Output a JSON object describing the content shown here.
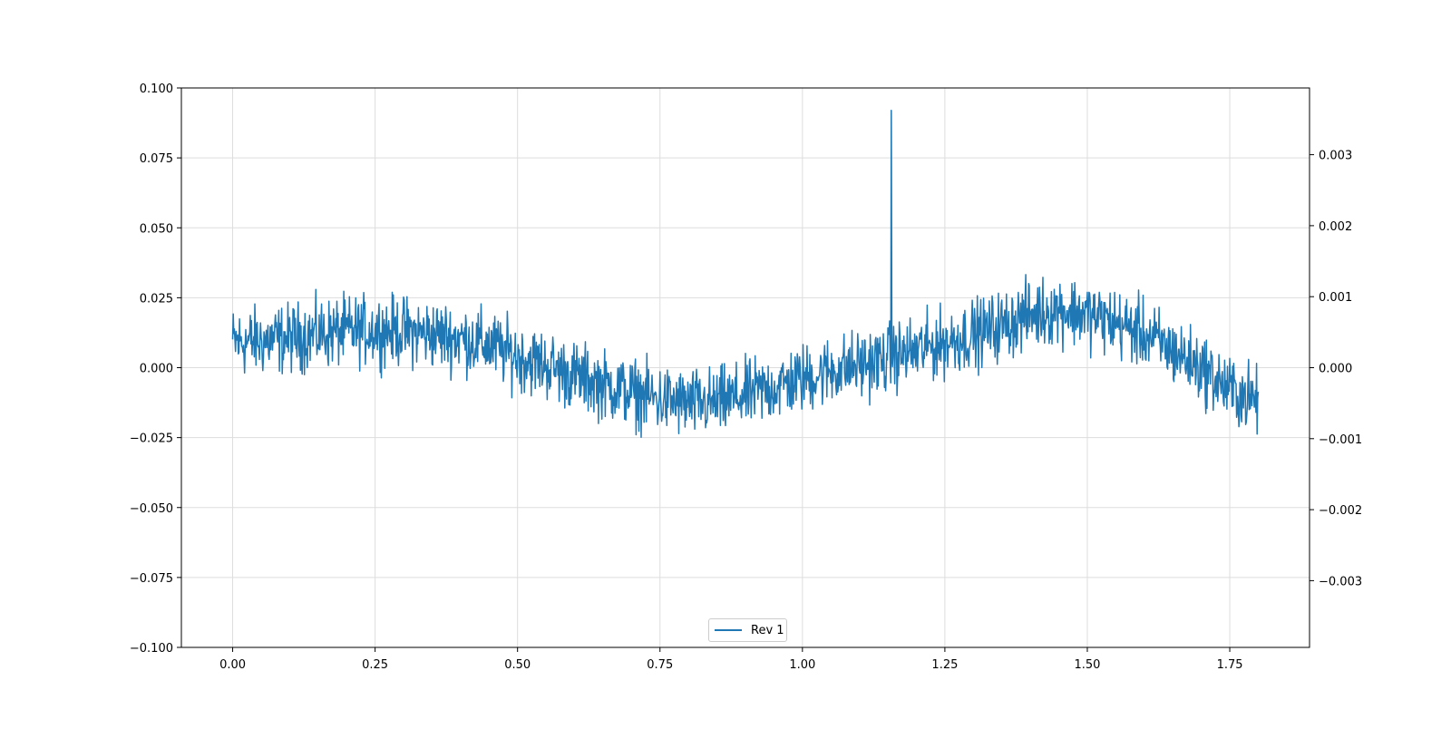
{
  "chart_data": {
    "type": "line",
    "title": "",
    "xlabel": "",
    "ylabel": "",
    "xlim": [
      -0.09,
      1.89
    ],
    "ylim": [
      -0.1,
      0.1
    ],
    "ylim_right": [
      -0.00394,
      0.00394
    ],
    "grid": true,
    "legend_placement": "bottom-center",
    "colors": {
      "series": "#1f77b4",
      "grid": "#dddddd",
      "axes": "#000000"
    },
    "x_ticks": [
      "0.00",
      "0.25",
      "0.50",
      "0.75",
      "1.00",
      "1.25",
      "1.50",
      "1.75"
    ],
    "x_tick_values": [
      0,
      0.25,
      0.5,
      0.75,
      1.0,
      1.25,
      1.5,
      1.75
    ],
    "y_ticks": [
      "−0.100",
      "−0.075",
      "−0.050",
      "−0.025",
      "0.000",
      "0.025",
      "0.050",
      "0.075",
      "0.100"
    ],
    "y_tick_values": [
      -0.1,
      -0.075,
      -0.05,
      -0.025,
      0,
      0.025,
      0.05,
      0.075,
      0.1
    ],
    "y2_ticks": [
      "−0.003",
      "−0.002",
      "−0.001",
      "0.000",
      "0.001",
      "0.002",
      "0.003"
    ],
    "y2_tick_values": [
      -0.003,
      -0.002,
      -0.001,
      0,
      0.001,
      0.002,
      0.003
    ],
    "series": [
      {
        "name": "Rev 1",
        "x": [
          0.0,
          0.05,
          0.1,
          0.15,
          0.2,
          0.25,
          0.3,
          0.35,
          0.4,
          0.45,
          0.5,
          0.55,
          0.6,
          0.65,
          0.7,
          0.75,
          0.8,
          0.85,
          0.9,
          0.95,
          1.0,
          1.05,
          1.1,
          1.15,
          1.156,
          1.16,
          1.2,
          1.25,
          1.3,
          1.35,
          1.4,
          1.45,
          1.5,
          1.55,
          1.6,
          1.65,
          1.7,
          1.75,
          1.8
        ],
        "trend": [
          0.009,
          0.0095,
          0.0105,
          0.012,
          0.013,
          0.0135,
          0.013,
          0.012,
          0.0105,
          0.008,
          0.004,
          0.001,
          -0.003,
          -0.006,
          -0.009,
          -0.0115,
          -0.013,
          -0.0125,
          -0.01,
          -0.007,
          -0.004,
          -0.001,
          0.001,
          0.003,
          0.004,
          0.004,
          0.006,
          0.009,
          0.012,
          0.015,
          0.019,
          0.021,
          0.019,
          0.016,
          0.012,
          0.006,
          0.0,
          -0.008,
          -0.012
        ],
        "noise_amplitude": 0.012,
        "spike": {
          "x": 1.156,
          "y": 0.092
        },
        "approx_min": -0.031,
        "approx_max_besides_spike": 0.042
      }
    ]
  },
  "legend": {
    "label": "Rev 1"
  }
}
